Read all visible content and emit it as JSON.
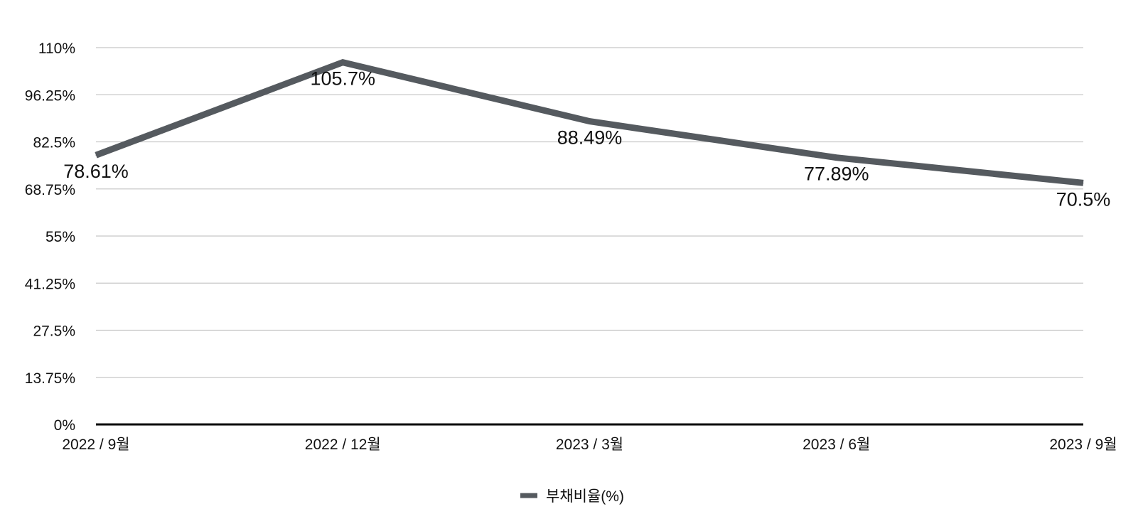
{
  "chart_data": {
    "type": "line",
    "categories": [
      "2022 / 9월",
      "2022 / 12월",
      "2023 / 3월",
      "2023 / 6월",
      "2023 / 9월"
    ],
    "series": [
      {
        "name": "부채비율(%)",
        "values": [
          78.61,
          105.7,
          88.49,
          77.89,
          70.5
        ],
        "data_labels": [
          "78.61%",
          "105.7%",
          "88.49%",
          "77.89%",
          "70.5%"
        ],
        "color": "#555a5f"
      }
    ],
    "ylim": [
      0,
      110
    ],
    "yticks": [
      0,
      13.75,
      27.5,
      41.25,
      55,
      68.75,
      82.5,
      96.25,
      110
    ],
    "ytick_labels": [
      "0%",
      "13.75%",
      "27.5%",
      "41.25%",
      "55%",
      "68.75%",
      "82.5%",
      "96.25%",
      "110%"
    ],
    "grid": true,
    "legend_position": "bottom-center"
  }
}
